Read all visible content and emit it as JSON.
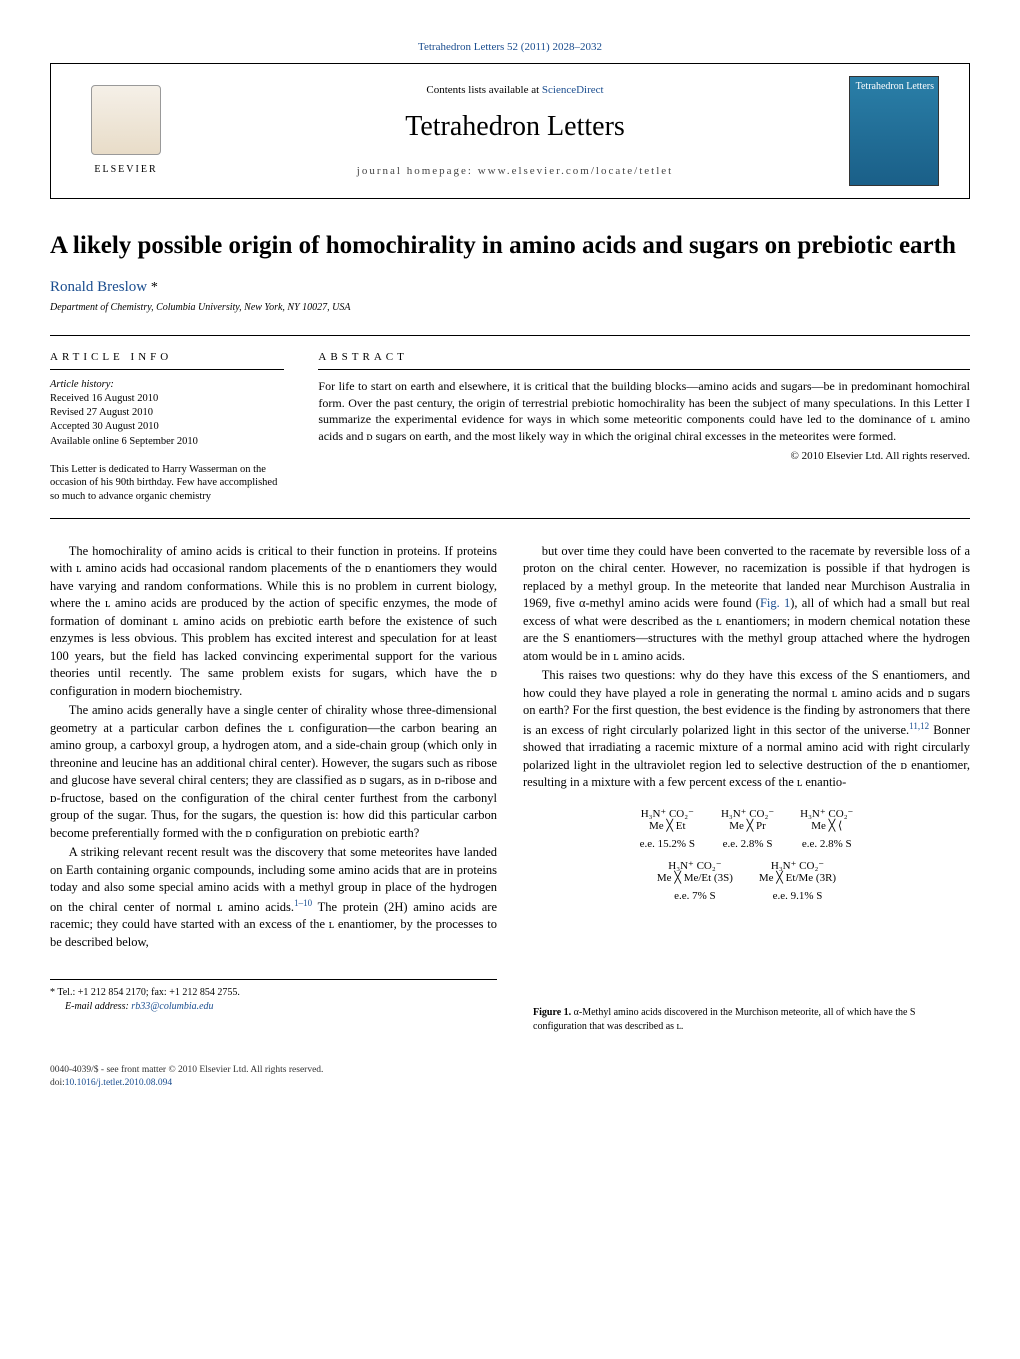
{
  "header_link": "Tetrahedron Letters 52 (2011) 2028–2032",
  "masthead": {
    "contents": "Contents lists available at",
    "sciencedirect": "ScienceDirect",
    "journal": "Tetrahedron Letters",
    "homepage": "journal homepage: www.elsevier.com/locate/tetlet",
    "publisher": "ELSEVIER",
    "cover_label": "Tetrahedron Letters"
  },
  "article": {
    "title": "A likely possible origin of homochirality in amino acids and sugars on prebiotic earth",
    "author": "Ronald Breslow",
    "star": "*",
    "affiliation": "Department of Chemistry, Columbia University, New York, NY 10027, USA"
  },
  "info": {
    "heading": "ARTICLE INFO",
    "hist_label": "Article history:",
    "received": "Received 16 August 2010",
    "revised": "Revised 27 August 2010",
    "accepted": "Accepted 30 August 2010",
    "online": "Available online 6 September 2010",
    "dedication": "This Letter is dedicated to Harry Wasserman on the occasion of his 90th birthday. Few have accomplished so much to advance organic chemistry"
  },
  "abstract": {
    "heading": "ABSTRACT",
    "text": "For life to start on earth and elsewhere, it is critical that the building blocks—amino acids and sugars—be in predominant homochiral form. Over the past century, the origin of terrestrial prebiotic homochirality has been the subject of many speculations. In this Letter I summarize the experimental evidence for ways in which some meteoritic components could have led to the dominance of ʟ amino acids and ᴅ sugars on earth, and the most likely way in which the original chiral excesses in the meteorites were formed.",
    "copyright": "© 2010 Elsevier Ltd. All rights reserved."
  },
  "body": {
    "p1": "The homochirality of amino acids is critical to their function in proteins. If proteins with ʟ amino acids had occasional random placements of the ᴅ enantiomers they would have varying and random conformations. While this is no problem in current biology, where the ʟ amino acids are produced by the action of specific enzymes, the mode of formation of dominant ʟ amino acids on prebiotic earth before the existence of such enzymes is less obvious. This problem has excited interest and speculation for at least 100 years, but the field has lacked convincing experimental support for the various theories until recently. The same problem exists for sugars, which have the ᴅ configuration in modern biochemistry.",
    "p2": "The amino acids generally have a single center of chirality whose three-dimensional geometry at a particular carbon defines the ʟ configuration—the carbon bearing an amino group, a carboxyl group, a hydrogen atom, and a side-chain group (which only in threonine and leucine has an additional chiral center). However, the sugars such as ribose and glucose have several chiral centers; they are classified as ᴅ sugars, as in ᴅ-ribose and ᴅ-fructose, based on the configuration of the chiral center furthest from the carbonyl group of the sugar. Thus, for the sugars, the question is: how did this particular carbon become preferentially formed with the ᴅ configuration on prebiotic earth?",
    "p3a": "A striking relevant recent result was the discovery that some meteorites have landed on Earth containing organic compounds, including some amino acids that are in proteins today and also some special amino acids with a methyl group in place of the hydrogen on the chiral center of normal ʟ amino acids.",
    "p3b": " The protein (2H) amino acids are racemic; they could have started with an excess of the ʟ enantiomer, by the processes to be described below,",
    "p3_ref": "1–10",
    "p4a": "but over time they could have been converted to the racemate by reversible loss of a proton on the chiral center. However, no racemization is possible if that hydrogen is replaced by a methyl group. In the meteorite that landed near Murchison Australia in 1969, five α-methyl amino acids were found (",
    "p4_figref": "Fig. 1",
    "p4b": "), all of which had a small but real excess of what were described as the ʟ enantiomers; in modern chemical notation these are the S enantiomers—structures with the methyl group attached where the hydrogen atom would be in ʟ amino acids.",
    "p5a": "This raises two questions: why do they have this excess of the S enantiomers, and how could they have played a role in generating the normal ʟ amino acids and ᴅ sugars on earth? For the first question, the best evidence is the finding by astronomers that there is an excess of right circularly polarized light in this sector of the universe.",
    "p5_ref": "11,12",
    "p5b": " Bonner showed that irradiating a racemic mixture of a normal amino acid with right circularly polarized light in the ultraviolet region led to selective destruction of the ᴅ enantiomer, resulting in a mixture with a few percent excess of the ʟ enantio-"
  },
  "figure1": {
    "structures_row1": [
      {
        "top": "H₃N⁺  CO₂⁻",
        "mid": "Me ╳ Et",
        "ee": "e.e. 15.2% S"
      },
      {
        "top": "H₃N⁺  CO₂⁻",
        "mid": "Me ╳ Pr",
        "ee": "e.e. 2.8% S"
      },
      {
        "top": "H₃N⁺  CO₂⁻",
        "mid": "Me ╳ ⟨",
        "ee": "e.e. 2.8% S"
      }
    ],
    "structures_row2": [
      {
        "top": "H₃N⁺  CO₂⁻",
        "mid": "Me ╳ Me/Et (3S)",
        "ee": "e.e. 7% S"
      },
      {
        "top": "H₃N⁺  CO₂⁻",
        "mid": "Me ╳ Et/Me (3R)",
        "ee": "e.e. 9.1% S"
      }
    ],
    "caption_lead": "Figure 1.",
    "caption": " α-Methyl amino acids discovered in the Murchison meteorite, all of which have the S configuration that was described as ʟ."
  },
  "footnote": {
    "star": "*",
    "tel": " Tel.: +1 212 854 2170; fax: +1 212 854 2755.",
    "email_label": "E-mail address: ",
    "email": "rb33@columbia.edu"
  },
  "bottom": {
    "issn": "0040-4039/$ - see front matter © 2010 Elsevier Ltd. All rights reserved.",
    "doi_label": "doi:",
    "doi": "10.1016/j.tetlet.2010.08.094"
  },
  "colors": {
    "link": "#1a4d8f",
    "text": "#000000"
  }
}
